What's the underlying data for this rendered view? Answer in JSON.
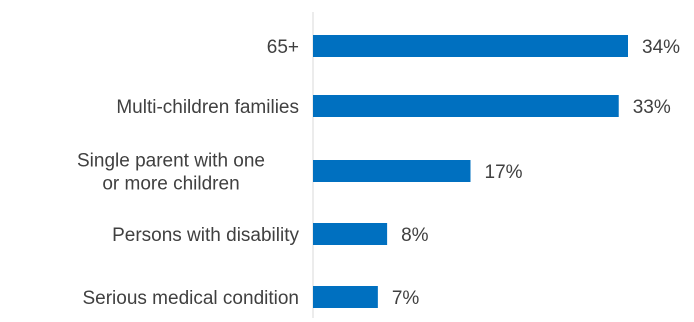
{
  "chart_data": {
    "type": "bar",
    "orientation": "horizontal",
    "categories": [
      [
        "65+"
      ],
      [
        "Multi-children families"
      ],
      [
        "Single parent with one",
        "or more children"
      ],
      [
        "Persons with disability"
      ],
      [
        "Serious medical condition"
      ]
    ],
    "values": [
      34,
      33,
      17,
      8,
      7
    ],
    "value_labels": [
      "34%",
      "33%",
      "17%",
      "8%",
      "7%"
    ],
    "unit": "%",
    "bar_color": "#0070C0",
    "axis_color": "#D9D9D9",
    "text_color": "#404040",
    "title": "",
    "xlabel": "",
    "ylabel": "",
    "xlim": [
      0,
      34
    ],
    "grid": false,
    "legend": "none"
  }
}
